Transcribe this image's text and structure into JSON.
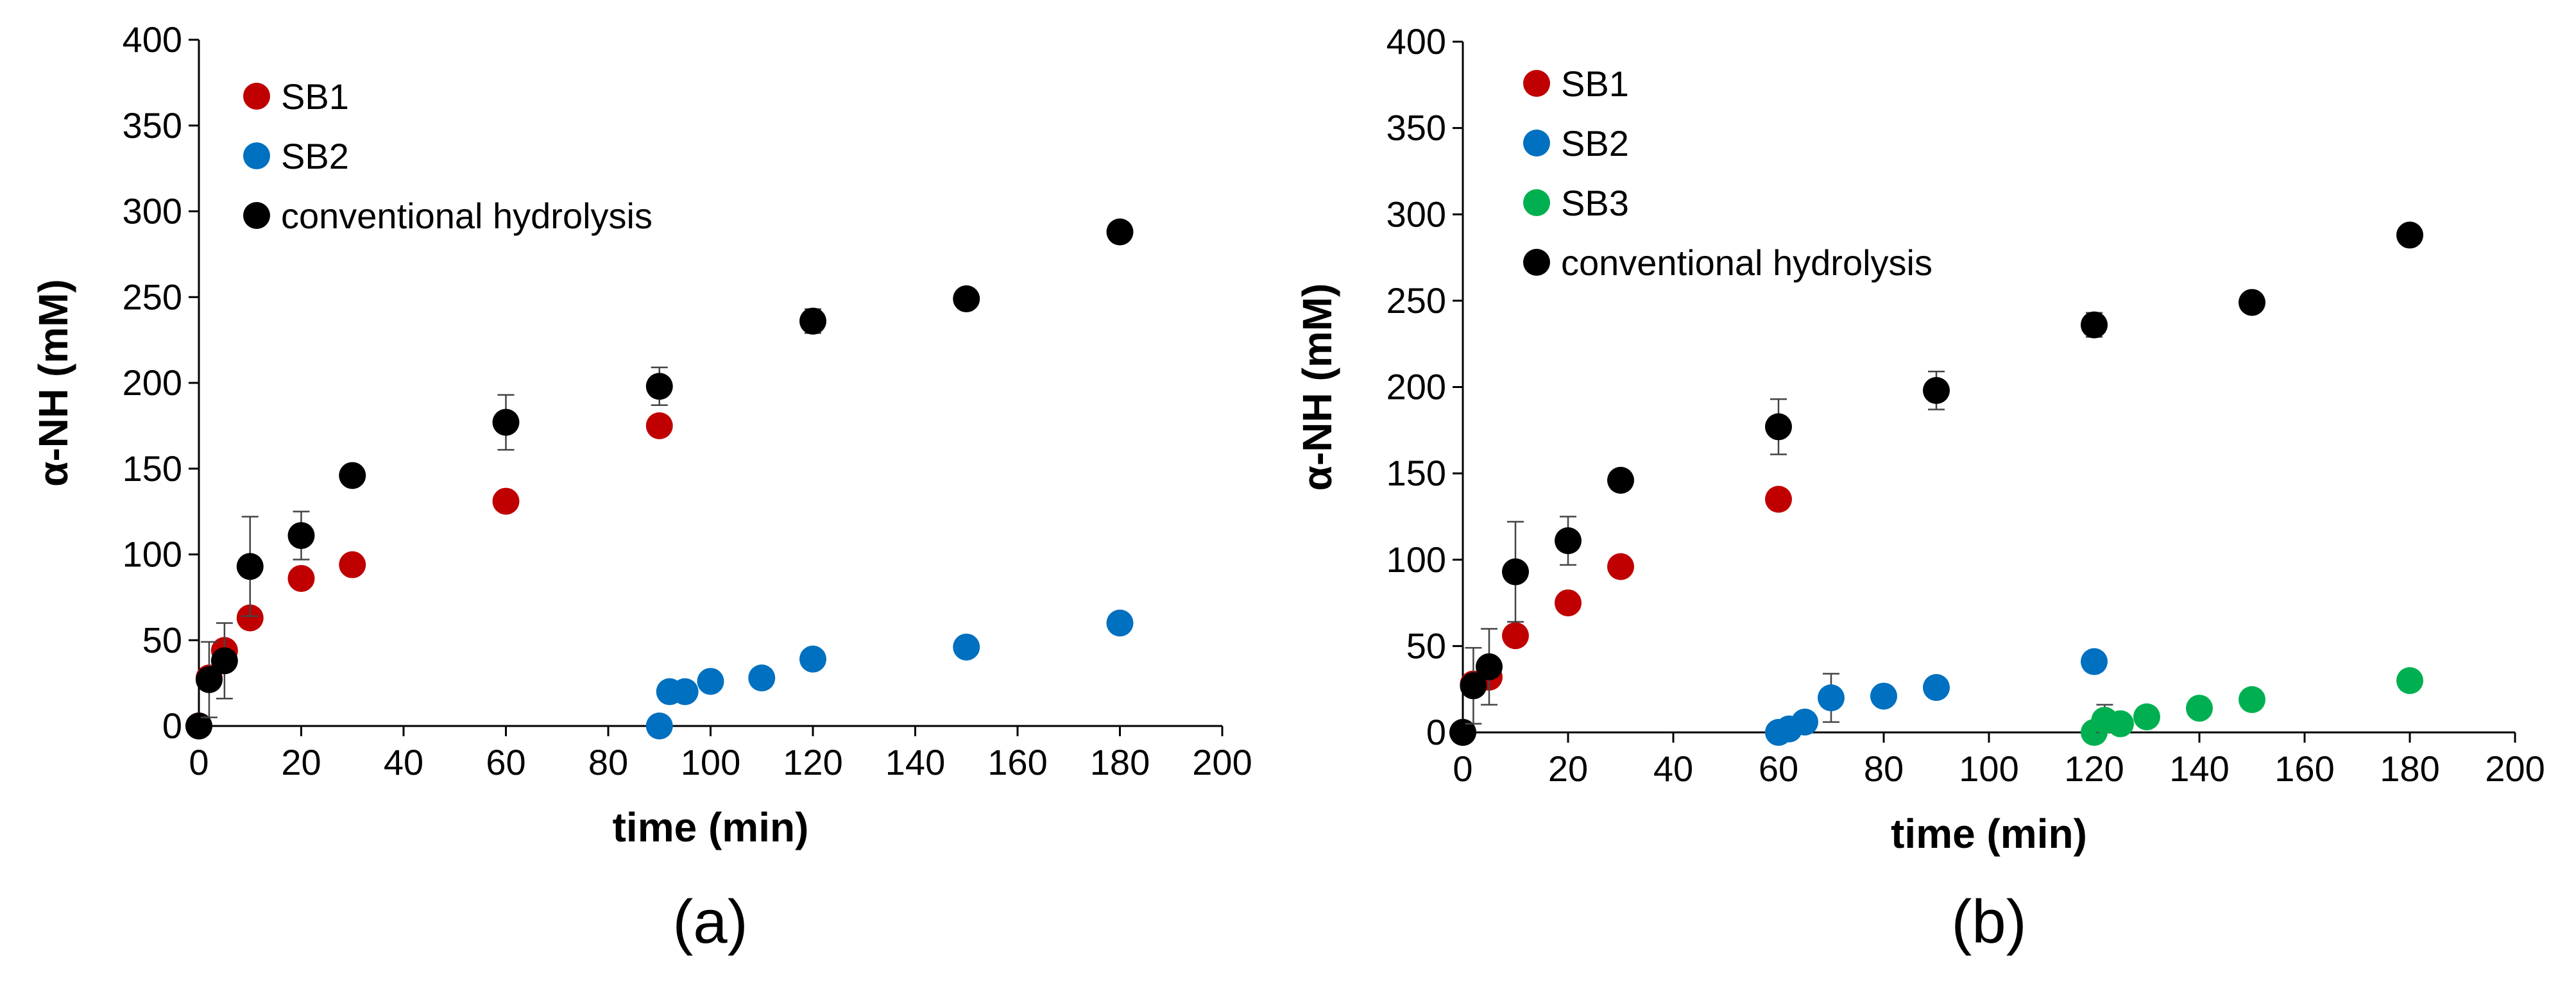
{
  "chart_data": [
    {
      "type": "scatter",
      "title": "",
      "caption": "(a)",
      "xlabel": "time (min)",
      "ylabel": "α-NH (mM)",
      "xlim": [
        0,
        200
      ],
      "ylim": [
        0,
        400
      ],
      "xticks": [
        0,
        20,
        40,
        60,
        80,
        100,
        120,
        140,
        160,
        180,
        200
      ],
      "yticks": [
        0,
        50,
        100,
        150,
        200,
        250,
        300,
        350,
        400
      ],
      "grid": false,
      "legend_position": "top-left",
      "series": [
        {
          "name": "SB1",
          "color": "#c00000",
          "points": [
            {
              "x": 0,
              "y": 0
            },
            {
              "x": 2,
              "y": 28
            },
            {
              "x": 5,
              "y": 44
            },
            {
              "x": 10,
              "y": 63
            },
            {
              "x": 20,
              "y": 86
            },
            {
              "x": 30,
              "y": 94
            },
            {
              "x": 60,
              "y": 131
            },
            {
              "x": 90,
              "y": 175
            }
          ]
        },
        {
          "name": "SB2",
          "color": "#0070c0",
          "points": [
            {
              "x": 90,
              "y": 0
            },
            {
              "x": 92,
              "y": 20
            },
            {
              "x": 95,
              "y": 20
            },
            {
              "x": 100,
              "y": 26
            },
            {
              "x": 110,
              "y": 28
            },
            {
              "x": 120,
              "y": 39
            },
            {
              "x": 150,
              "y": 46
            },
            {
              "x": 180,
              "y": 60
            }
          ]
        },
        {
          "name": "conventional hydrolysis",
          "color": "#000000",
          "points": [
            {
              "x": 0,
              "y": 0
            },
            {
              "x": 2,
              "y": 27,
              "err": 22
            },
            {
              "x": 5,
              "y": 38,
              "err": 22
            },
            {
              "x": 10,
              "y": 93,
              "err": 29
            },
            {
              "x": 20,
              "y": 111,
              "err": 14
            },
            {
              "x": 30,
              "y": 146
            },
            {
              "x": 60,
              "y": 177,
              "err": 16
            },
            {
              "x": 90,
              "y": 198,
              "err": 11
            },
            {
              "x": 120,
              "y": 236,
              "err": 7
            },
            {
              "x": 150,
              "y": 249
            },
            {
              "x": 180,
              "y": 288,
              "err": 5
            }
          ]
        }
      ]
    },
    {
      "type": "scatter",
      "title": "",
      "caption": "(b)",
      "xlabel": "time (min)",
      "ylabel": "α-NH (mM)",
      "xlim": [
        0,
        200
      ],
      "ylim": [
        0,
        400
      ],
      "xticks": [
        0,
        20,
        40,
        60,
        80,
        100,
        120,
        140,
        160,
        180,
        200
      ],
      "yticks": [
        0,
        50,
        100,
        150,
        200,
        250,
        300,
        350,
        400
      ],
      "grid": false,
      "legend_position": "top-left",
      "series": [
        {
          "name": "SB1",
          "color": "#c00000",
          "points": [
            {
              "x": 0,
              "y": 0
            },
            {
              "x": 2,
              "y": 28
            },
            {
              "x": 5,
              "y": 32
            },
            {
              "x": 10,
              "y": 56
            },
            {
              "x": 20,
              "y": 75
            },
            {
              "x": 30,
              "y": 96
            },
            {
              "x": 60,
              "y": 135
            }
          ]
        },
        {
          "name": "SB2",
          "color": "#0070c0",
          "points": [
            {
              "x": 60,
              "y": 0
            },
            {
              "x": 62,
              "y": 2
            },
            {
              "x": 65,
              "y": 6
            },
            {
              "x": 70,
              "y": 20,
              "err": 14
            },
            {
              "x": 80,
              "y": 21
            },
            {
              "x": 90,
              "y": 26
            },
            {
              "x": 120,
              "y": 41
            }
          ]
        },
        {
          "name": "SB3",
          "color": "#00b050",
          "points": [
            {
              "x": 120,
              "y": 0
            },
            {
              "x": 122,
              "y": 7,
              "err": 9
            },
            {
              "x": 125,
              "y": 5
            },
            {
              "x": 130,
              "y": 9
            },
            {
              "x": 140,
              "y": 14
            },
            {
              "x": 150,
              "y": 19
            },
            {
              "x": 180,
              "y": 30
            }
          ]
        },
        {
          "name": "conventional hydrolysis",
          "color": "#000000",
          "points": [
            {
              "x": 0,
              "y": 0
            },
            {
              "x": 2,
              "y": 27,
              "err": 22
            },
            {
              "x": 5,
              "y": 38,
              "err": 22
            },
            {
              "x": 10,
              "y": 93,
              "err": 29
            },
            {
              "x": 20,
              "y": 111,
              "err": 14
            },
            {
              "x": 30,
              "y": 146
            },
            {
              "x": 60,
              "y": 177,
              "err": 16
            },
            {
              "x": 90,
              "y": 198,
              "err": 11
            },
            {
              "x": 120,
              "y": 236,
              "err": 7
            },
            {
              "x": 150,
              "y": 249
            },
            {
              "x": 180,
              "y": 288,
              "err": 5
            }
          ]
        }
      ]
    }
  ]
}
